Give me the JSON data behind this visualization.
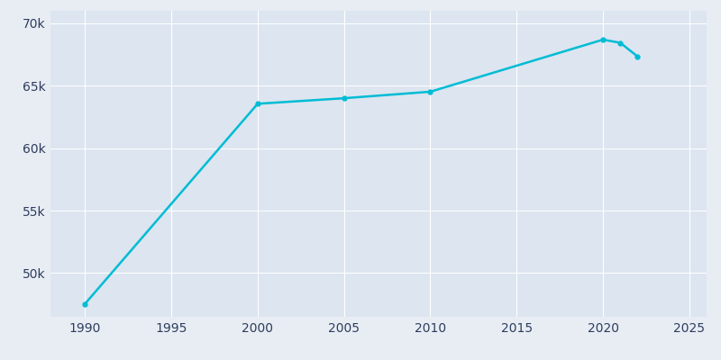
{
  "years": [
    1990,
    2000,
    2005,
    2010,
    2020,
    2021,
    2022
  ],
  "population": [
    47540,
    63557,
    64000,
    64522,
    68690,
    68440,
    67346
  ],
  "line_color": "#00bcd4",
  "marker_color": "#00bcd4",
  "background_color": "#e8edf4",
  "plot_background_color": "#dce5f0",
  "grid_color": "#ffffff",
  "tick_color": "#2e3d5e",
  "xlim": [
    1988,
    2026
  ],
  "ylim": [
    46500,
    71000
  ],
  "xticks": [
    1990,
    1995,
    2000,
    2005,
    2010,
    2015,
    2020,
    2025
  ],
  "ytick_values": [
    50000,
    55000,
    60000,
    65000,
    70000
  ],
  "ytick_labels": [
    "50k",
    "55k",
    "60k",
    "65k",
    "70k"
  ],
  "line_width": 1.8,
  "marker_size": 3.5
}
